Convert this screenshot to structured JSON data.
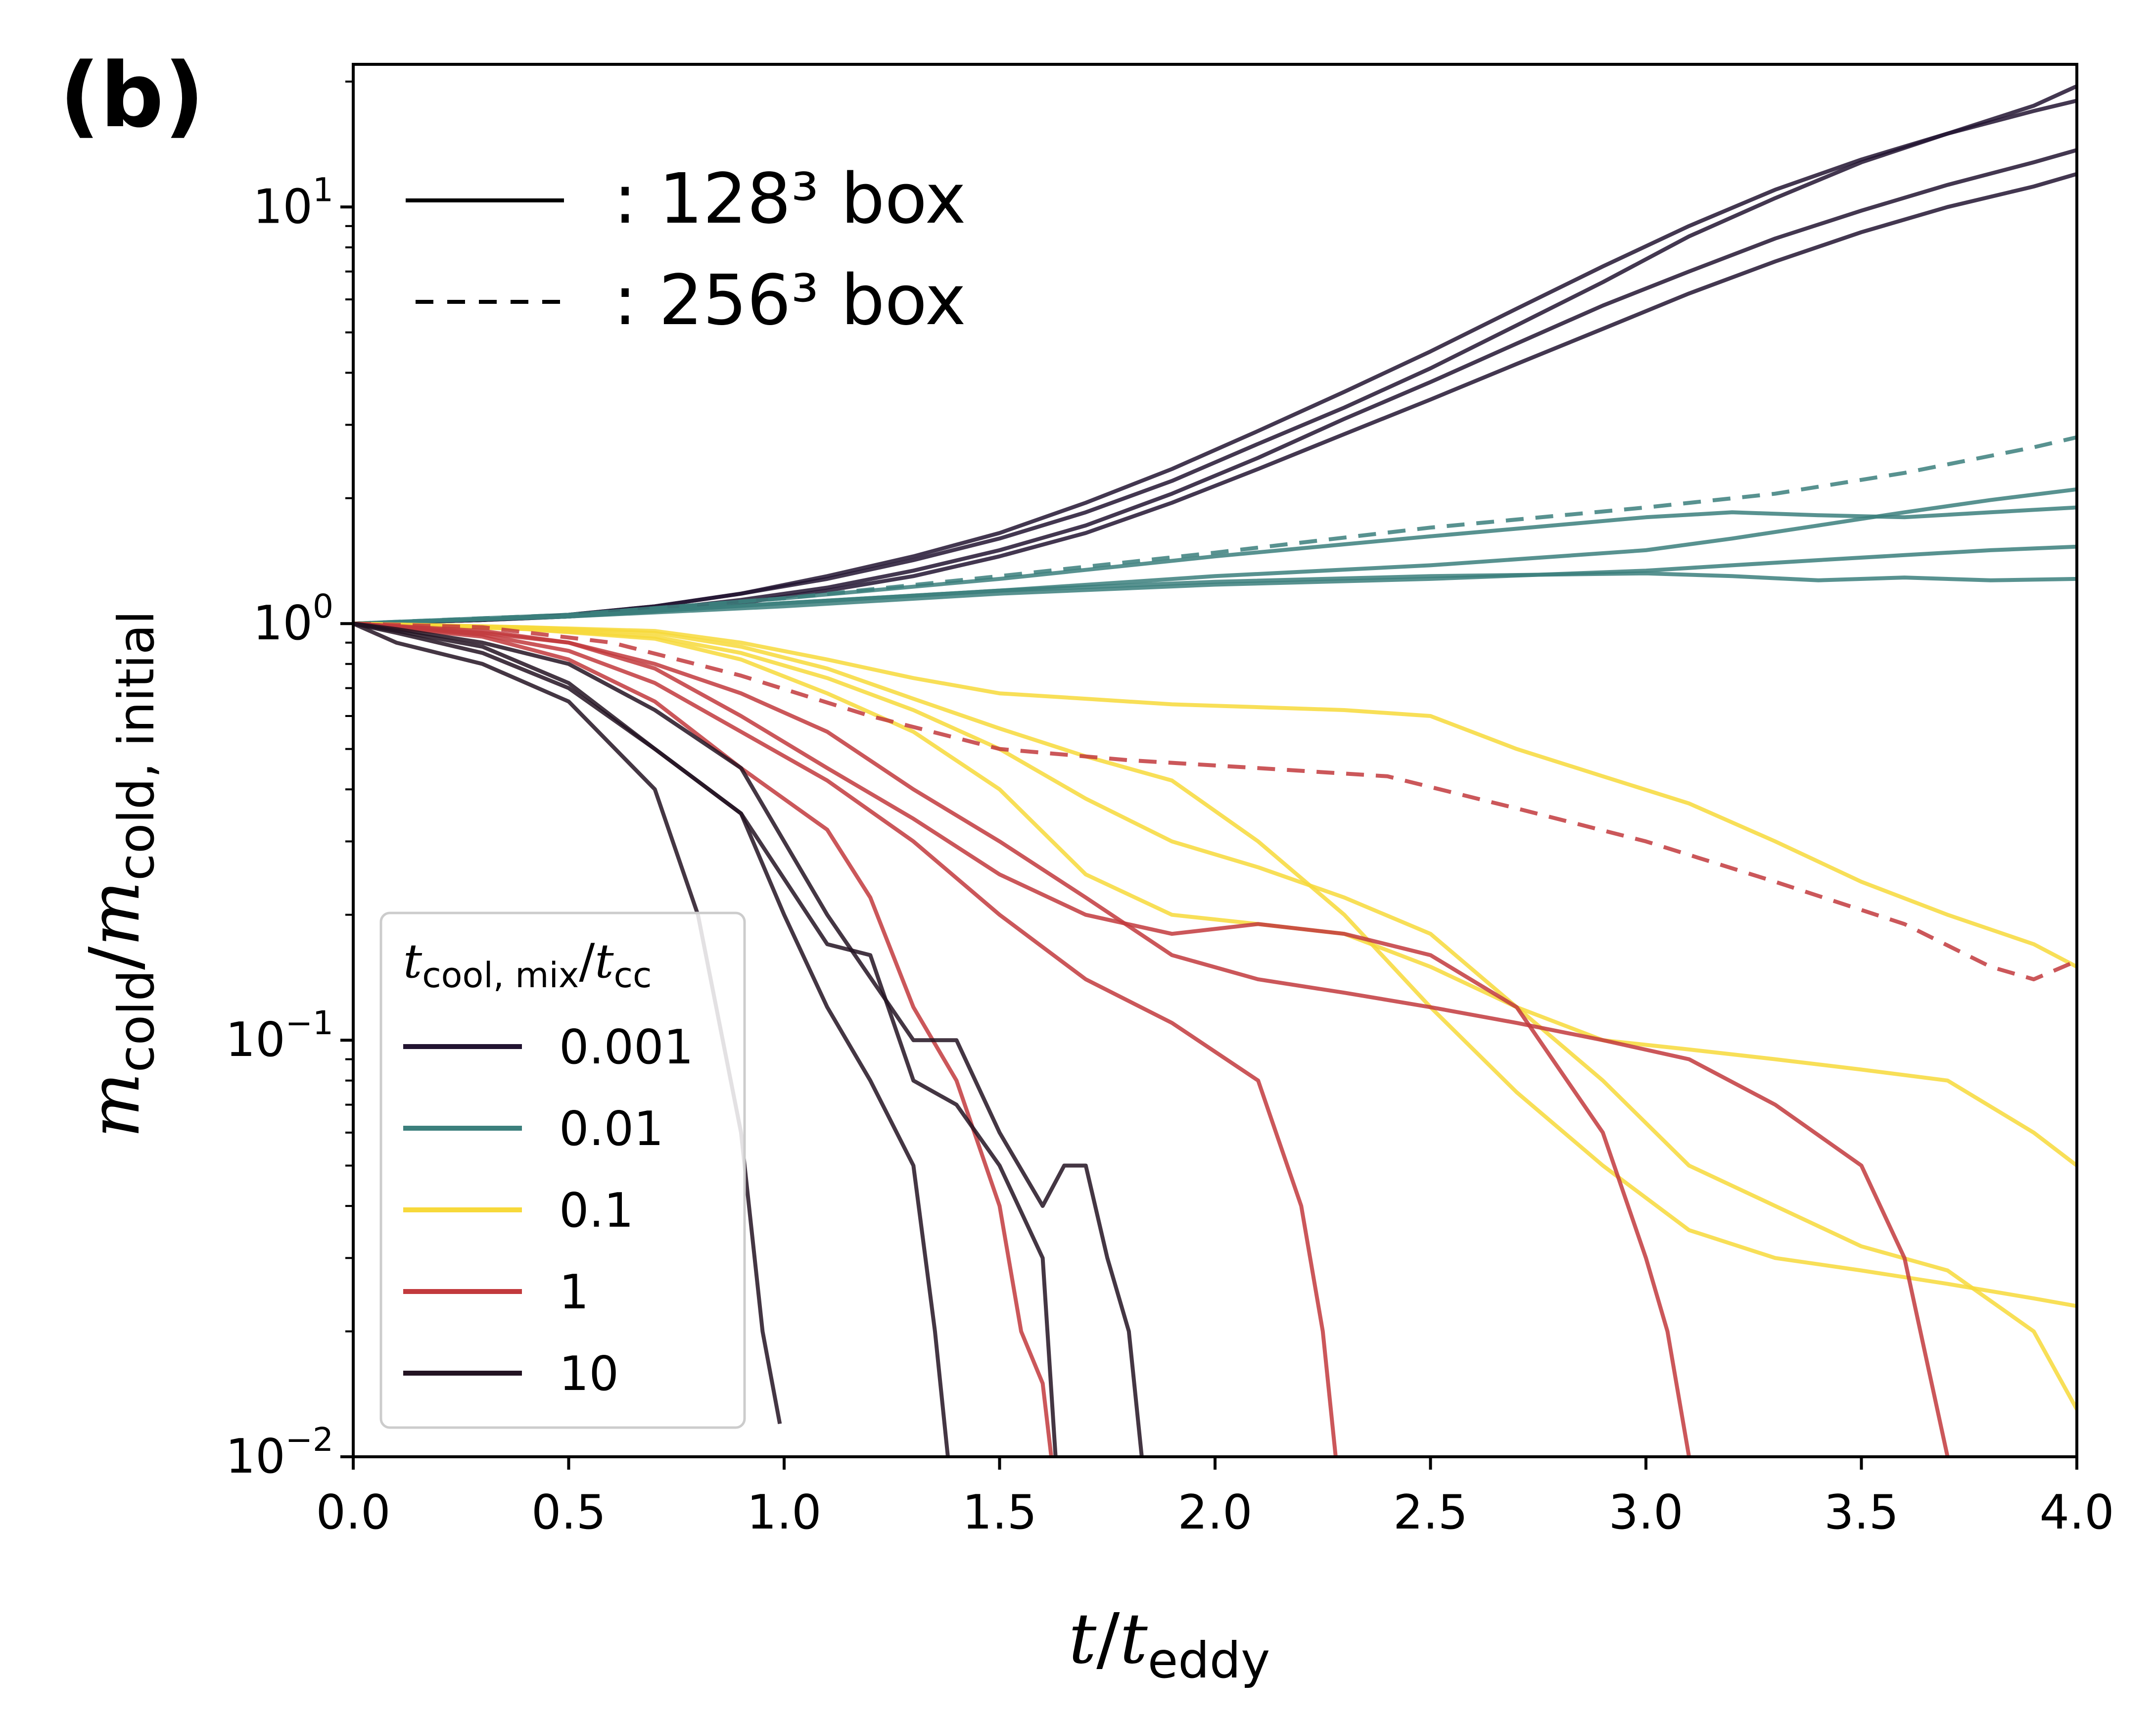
{
  "panel_label": "(b)",
  "linestyle_legend": [
    {
      "style": "solid",
      "label": ": 128³ box"
    },
    {
      "style": "dashed",
      "label": ": 256³ box"
    }
  ],
  "colors": {
    "0.001": "#221431",
    "0.01": "#3b7f7c",
    "0.1": "#f7d93a",
    "1": "#c23a3d",
    "10": "#231322"
  },
  "chart_data": {
    "type": "line",
    "title": "",
    "xlabel": "t/t_eddy",
    "ylabel": "m_cold/m_cold, initial",
    "xlim": [
      0.0,
      4.0
    ],
    "ylim": [
      0.01,
      22
    ],
    "yscale": "log",
    "xticks": [
      "0.0",
      "0.5",
      "1.0",
      "1.5",
      "2.0",
      "2.5",
      "3.0",
      "3.5",
      "4.0"
    ],
    "yticks": [
      {
        "value": 0.01,
        "base": "10",
        "exp": "−2"
      },
      {
        "value": 0.1,
        "base": "10",
        "exp": "−1"
      },
      {
        "value": 1,
        "base": "10",
        "exp": "0"
      },
      {
        "value": 10,
        "base": "10",
        "exp": "1"
      }
    ],
    "legend": {
      "title": "t_cool, mix/t_cc",
      "placement": "lower-left",
      "entries": [
        "0.001",
        "0.01",
        "0.1",
        "1",
        "10"
      ]
    },
    "series": [
      {
        "group": "0.001",
        "dashed": false,
        "x": [
          0,
          0.3,
          0.5,
          0.7,
          0.9,
          1.1,
          1.3,
          1.5,
          1.7,
          1.9,
          2.1,
          2.3,
          2.5,
          2.7,
          2.9,
          3.1,
          3.3,
          3.5,
          3.7,
          3.9,
          4.0
        ],
        "y": [
          1.0,
          1.02,
          1.05,
          1.1,
          1.18,
          1.3,
          1.45,
          1.65,
          1.95,
          2.35,
          2.9,
          3.6,
          4.5,
          5.7,
          7.2,
          9.0,
          11,
          13,
          15,
          17,
          18
        ]
      },
      {
        "group": "0.001",
        "dashed": false,
        "x": [
          0,
          0.3,
          0.5,
          0.7,
          0.9,
          1.1,
          1.3,
          1.5,
          1.7,
          1.9,
          2.1,
          2.3,
          2.5,
          2.7,
          2.9,
          3.1,
          3.3,
          3.5,
          3.7,
          3.9,
          4.0
        ],
        "y": [
          1.0,
          1.02,
          1.05,
          1.1,
          1.18,
          1.28,
          1.42,
          1.6,
          1.85,
          2.2,
          2.7,
          3.3,
          4.1,
          5.2,
          6.6,
          8.5,
          10.5,
          12.8,
          15,
          17.5,
          19.5
        ]
      },
      {
        "group": "0.001",
        "dashed": false,
        "x": [
          0,
          0.3,
          0.5,
          0.7,
          0.9,
          1.1,
          1.3,
          1.5,
          1.7,
          1.9,
          2.1,
          2.3,
          2.5,
          2.7,
          2.9,
          3.1,
          3.3,
          3.5,
          3.7,
          3.9,
          4.0
        ],
        "y": [
          1.0,
          1.02,
          1.04,
          1.08,
          1.14,
          1.22,
          1.34,
          1.5,
          1.72,
          2.05,
          2.5,
          3.1,
          3.8,
          4.7,
          5.8,
          7.0,
          8.4,
          9.8,
          11.3,
          12.8,
          13.7
        ]
      },
      {
        "group": "0.001",
        "dashed": false,
        "x": [
          0,
          0.3,
          0.5,
          0.7,
          0.9,
          1.1,
          1.3,
          1.5,
          1.7,
          1.9,
          2.1,
          2.3,
          2.5,
          2.7,
          2.9,
          3.1,
          3.3,
          3.5,
          3.7,
          3.9,
          4.0
        ],
        "y": [
          1.0,
          1.02,
          1.04,
          1.07,
          1.12,
          1.2,
          1.3,
          1.45,
          1.65,
          1.95,
          2.35,
          2.85,
          3.45,
          4.2,
          5.1,
          6.2,
          7.4,
          8.7,
          10,
          11.2,
          12
        ]
      },
      {
        "group": "0.01",
        "dashed": false,
        "x": [
          0,
          0.5,
          1.0,
          1.5,
          2.0,
          2.5,
          3.0,
          3.2,
          3.4,
          3.6,
          3.8,
          4.0
        ],
        "y": [
          1.0,
          1.04,
          1.12,
          1.2,
          1.3,
          1.38,
          1.5,
          1.6,
          1.72,
          1.85,
          1.98,
          2.1
        ]
      },
      {
        "group": "0.01",
        "dashed": false,
        "x": [
          0,
          0.5,
          1.0,
          1.5,
          2.0,
          2.5,
          3.0,
          3.2,
          3.4,
          3.6,
          3.8,
          4.0
        ],
        "y": [
          1.0,
          1.05,
          1.15,
          1.28,
          1.45,
          1.62,
          1.8,
          1.85,
          1.82,
          1.8,
          1.85,
          1.9
        ]
      },
      {
        "group": "0.01",
        "dashed": false,
        "x": [
          0,
          0.5,
          1.0,
          1.5,
          2.0,
          2.5,
          3.0,
          3.2,
          3.4,
          3.6,
          3.8,
          4.0
        ],
        "y": [
          1.0,
          1.04,
          1.1,
          1.18,
          1.24,
          1.28,
          1.34,
          1.38,
          1.42,
          1.46,
          1.5,
          1.53
        ]
      },
      {
        "group": "0.01",
        "dashed": false,
        "x": [
          0,
          0.5,
          1.0,
          1.5,
          2.0,
          2.5,
          3.0,
          3.2,
          3.4,
          3.6,
          3.8,
          4.0
        ],
        "y": [
          1.0,
          1.04,
          1.12,
          1.2,
          1.26,
          1.3,
          1.32,
          1.3,
          1.27,
          1.29,
          1.27,
          1.28
        ]
      },
      {
        "group": "0.01",
        "dashed": true,
        "x": [
          0,
          0.5,
          1.0,
          1.5,
          2.0,
          2.5,
          3.0,
          3.3,
          3.6,
          3.9,
          4.0
        ],
        "y": [
          1.0,
          1.05,
          1.15,
          1.3,
          1.48,
          1.7,
          1.9,
          2.05,
          2.3,
          2.65,
          2.8
        ]
      },
      {
        "group": "0.1",
        "dashed": false,
        "x": [
          0,
          0.4,
          0.7,
          0.9,
          1.1,
          1.3,
          1.5,
          1.7,
          1.9,
          2.1,
          2.3,
          2.5,
          2.7,
          2.9,
          3.1,
          3.3,
          3.5,
          3.7,
          3.9,
          4.0
        ],
        "y": [
          1.0,
          0.98,
          0.95,
          0.88,
          0.78,
          0.66,
          0.56,
          0.48,
          0.42,
          0.3,
          0.2,
          0.12,
          0.075,
          0.05,
          0.035,
          0.03,
          0.028,
          0.026,
          0.024,
          0.023
        ]
      },
      {
        "group": "0.1",
        "dashed": false,
        "x": [
          0,
          0.4,
          0.7,
          0.9,
          1.1,
          1.3,
          1.5,
          1.7,
          1.9,
          2.1,
          2.3,
          2.5,
          2.7,
          2.9,
          3.1,
          3.3,
          3.5,
          3.7,
          3.9,
          4.0
        ],
        "y": [
          1.0,
          0.97,
          0.92,
          0.82,
          0.68,
          0.55,
          0.4,
          0.25,
          0.2,
          0.19,
          0.18,
          0.15,
          0.12,
          0.1,
          0.095,
          0.09,
          0.085,
          0.08,
          0.06,
          0.05
        ]
      },
      {
        "group": "0.1",
        "dashed": false,
        "x": [
          0,
          0.4,
          0.7,
          0.9,
          1.1,
          1.3,
          1.5,
          1.7,
          1.9,
          2.1,
          2.3,
          2.5,
          2.7,
          2.9,
          3.1,
          3.3,
          3.5,
          3.7,
          3.9,
          4.0
        ],
        "y": [
          1.0,
          0.98,
          0.96,
          0.9,
          0.82,
          0.74,
          0.68,
          0.66,
          0.64,
          0.63,
          0.62,
          0.6,
          0.5,
          0.43,
          0.37,
          0.3,
          0.24,
          0.2,
          0.17,
          0.15
        ]
      },
      {
        "group": "0.1",
        "dashed": false,
        "x": [
          0,
          0.4,
          0.7,
          0.9,
          1.1,
          1.3,
          1.5,
          1.7,
          1.9,
          2.1,
          2.3,
          2.5,
          2.7,
          2.9,
          3.1,
          3.3,
          3.5,
          3.7,
          3.9,
          4.0
        ],
        "y": [
          1.0,
          0.97,
          0.93,
          0.85,
          0.74,
          0.62,
          0.5,
          0.38,
          0.3,
          0.26,
          0.22,
          0.18,
          0.12,
          0.08,
          0.05,
          0.04,
          0.032,
          0.028,
          0.02,
          0.013
        ]
      },
      {
        "group": "1",
        "dashed": false,
        "x": [
          0,
          0.3,
          0.5,
          0.7,
          0.9,
          1.1,
          1.3,
          1.5,
          1.7,
          1.9,
          2.1,
          2.3,
          2.5,
          2.7,
          2.9,
          3.1,
          3.3,
          3.5,
          3.6,
          3.7
        ],
        "y": [
          1.0,
          0.95,
          0.9,
          0.8,
          0.68,
          0.55,
          0.4,
          0.3,
          0.22,
          0.16,
          0.14,
          0.13,
          0.12,
          0.11,
          0.1,
          0.09,
          0.07,
          0.05,
          0.03,
          0.01
        ]
      },
      {
        "group": "1",
        "dashed": false,
        "x": [
          0,
          0.3,
          0.5,
          0.7,
          0.9,
          1.1,
          1.3,
          1.5,
          1.7,
          1.9,
          2.1,
          2.2,
          2.25,
          2.28
        ],
        "y": [
          1.0,
          0.94,
          0.86,
          0.72,
          0.55,
          0.42,
          0.3,
          0.2,
          0.14,
          0.11,
          0.08,
          0.04,
          0.02,
          0.01
        ]
      },
      {
        "group": "1",
        "dashed": false,
        "x": [
          0,
          0.3,
          0.5,
          0.7,
          0.9,
          1.1,
          1.3,
          1.5,
          1.7,
          1.9,
          2.1,
          2.3,
          2.5,
          2.7,
          2.9,
          3.0,
          3.05,
          3.1
        ],
        "y": [
          1.0,
          0.96,
          0.9,
          0.78,
          0.6,
          0.45,
          0.34,
          0.25,
          0.2,
          0.18,
          0.19,
          0.18,
          0.16,
          0.12,
          0.06,
          0.03,
          0.02,
          0.01
        ]
      },
      {
        "group": "1",
        "dashed": false,
        "x": [
          0,
          0.3,
          0.5,
          0.7,
          0.9,
          1.1,
          1.2,
          1.3,
          1.4,
          1.5,
          1.55,
          1.6,
          1.62
        ],
        "y": [
          1.0,
          0.93,
          0.82,
          0.65,
          0.45,
          0.32,
          0.22,
          0.12,
          0.08,
          0.04,
          0.02,
          0.015,
          0.01
        ]
      },
      {
        "group": "1",
        "dashed": true,
        "x": [
          0,
          0.3,
          0.6,
          0.9,
          1.2,
          1.5,
          1.8,
          2.1,
          2.4,
          2.7,
          3.0,
          3.3,
          3.6,
          3.8,
          3.9,
          4.0
        ],
        "y": [
          1.0,
          0.98,
          0.9,
          0.75,
          0.6,
          0.5,
          0.47,
          0.45,
          0.43,
          0.36,
          0.3,
          0.24,
          0.19,
          0.15,
          0.14,
          0.155
        ]
      },
      {
        "group": "10",
        "dashed": false,
        "x": [
          0,
          0.1,
          0.3,
          0.5,
          0.7,
          0.8,
          0.9,
          0.95,
          0.99
        ],
        "y": [
          1.0,
          0.9,
          0.8,
          0.65,
          0.4,
          0.2,
          0.06,
          0.02,
          0.012
        ]
      },
      {
        "group": "10",
        "dashed": false,
        "x": [
          0,
          0.1,
          0.3,
          0.5,
          0.7,
          0.9,
          1.0,
          1.1,
          1.2,
          1.3,
          1.35,
          1.38
        ],
        "y": [
          1.0,
          0.95,
          0.85,
          0.7,
          0.5,
          0.35,
          0.2,
          0.12,
          0.08,
          0.05,
          0.02,
          0.01
        ]
      },
      {
        "group": "10",
        "dashed": false,
        "x": [
          0,
          0.1,
          0.3,
          0.5,
          0.7,
          0.9,
          1.1,
          1.3,
          1.4,
          1.5,
          1.6,
          1.65,
          1.7,
          1.75,
          1.8,
          1.83
        ],
        "y": [
          1.0,
          0.97,
          0.9,
          0.8,
          0.62,
          0.45,
          0.2,
          0.1,
          0.1,
          0.06,
          0.04,
          0.05,
          0.05,
          0.03,
          0.02,
          0.01
        ]
      },
      {
        "group": "10",
        "dashed": false,
        "x": [
          0,
          0.1,
          0.3,
          0.5,
          0.7,
          0.9,
          1.1,
          1.2,
          1.3,
          1.4,
          1.5,
          1.6,
          1.63
        ],
        "y": [
          1.0,
          0.96,
          0.88,
          0.72,
          0.5,
          0.35,
          0.17,
          0.16,
          0.08,
          0.07,
          0.05,
          0.03,
          0.01
        ]
      }
    ]
  }
}
